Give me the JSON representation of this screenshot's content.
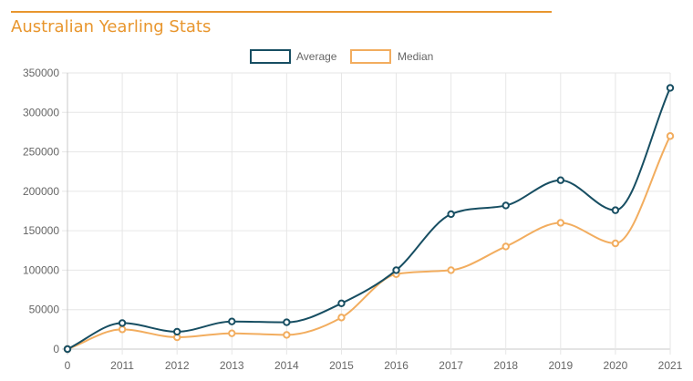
{
  "header": {
    "title": "Australian Yearling Stats"
  },
  "chart_data": {
    "type": "line",
    "x": [
      "0",
      "2011",
      "2012",
      "2013",
      "2014",
      "2015",
      "2016",
      "2017",
      "2018",
      "2019",
      "2020",
      "2021"
    ],
    "series": [
      {
        "name": "Average",
        "color": "#174e62",
        "values": [
          0,
          33000,
          22000,
          35000,
          34000,
          58000,
          100000,
          171000,
          182000,
          214000,
          176000,
          331000
        ]
      },
      {
        "name": "Median",
        "color": "#f2ad5f",
        "values": [
          0,
          25000,
          15000,
          20000,
          18000,
          40000,
          95000,
          100000,
          130000,
          160000,
          134000,
          270000
        ]
      }
    ],
    "y_ticks": [
      "0",
      "50000",
      "100000",
      "150000",
      "200000",
      "250000",
      "300000",
      "350000"
    ],
    "ylim": [
      0,
      350000
    ],
    "grid": true,
    "legend": "top-center"
  }
}
